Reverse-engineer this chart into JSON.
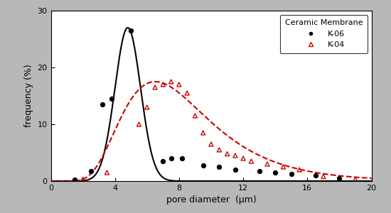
{
  "title": "",
  "xlabel": "pore diameter  (μm)",
  "ylabel": "frequency (%)",
  "xlim": [
    0,
    20
  ],
  "ylim": [
    0,
    30
  ],
  "xticks": [
    0,
    4,
    8,
    12,
    16,
    20
  ],
  "yticks": [
    0,
    10,
    20,
    30
  ],
  "legend_title": "Ceramic Membrane",
  "k06_scatter_x": [
    1.5,
    2.5,
    3.2,
    3.8,
    5.0,
    7.0,
    7.5,
    8.2,
    9.5,
    10.5,
    11.5,
    13.0,
    14.0,
    15.0,
    16.5,
    18.0
  ],
  "k06_scatter_y": [
    0.3,
    1.8,
    13.5,
    14.5,
    26.5,
    3.5,
    4.0,
    4.0,
    2.8,
    2.5,
    2.0,
    1.8,
    1.5,
    1.3,
    1.0,
    0.5
  ],
  "k06_curve_mu": 4.8,
  "k06_curve_sigma": 0.8,
  "k06_curve_amplitude": 27.0,
  "k04_scatter_x": [
    2.0,
    3.5,
    5.5,
    6.0,
    6.5,
    7.0,
    7.5,
    8.0,
    8.5,
    9.0,
    9.5,
    10.0,
    10.5,
    11.0,
    11.5,
    12.0,
    12.5,
    13.5,
    14.5,
    15.5,
    17.0,
    19.0
  ],
  "k04_scatter_y": [
    0.3,
    1.5,
    10.0,
    13.0,
    16.5,
    17.0,
    17.5,
    17.0,
    15.5,
    11.5,
    8.5,
    6.5,
    5.5,
    4.8,
    4.5,
    4.0,
    3.5,
    3.0,
    2.5,
    2.0,
    0.8,
    0.3
  ],
  "k04_ln_mu": 2.05,
  "k04_ln_sigma": 0.42,
  "k04_curve_amplitude": 17.5,
  "k06_color": "#000000",
  "k04_color": "#cc0000",
  "background_color": "#ffffff",
  "fig_background": "#b8b8b8",
  "font_size": 9,
  "legend_fontsize": 8
}
